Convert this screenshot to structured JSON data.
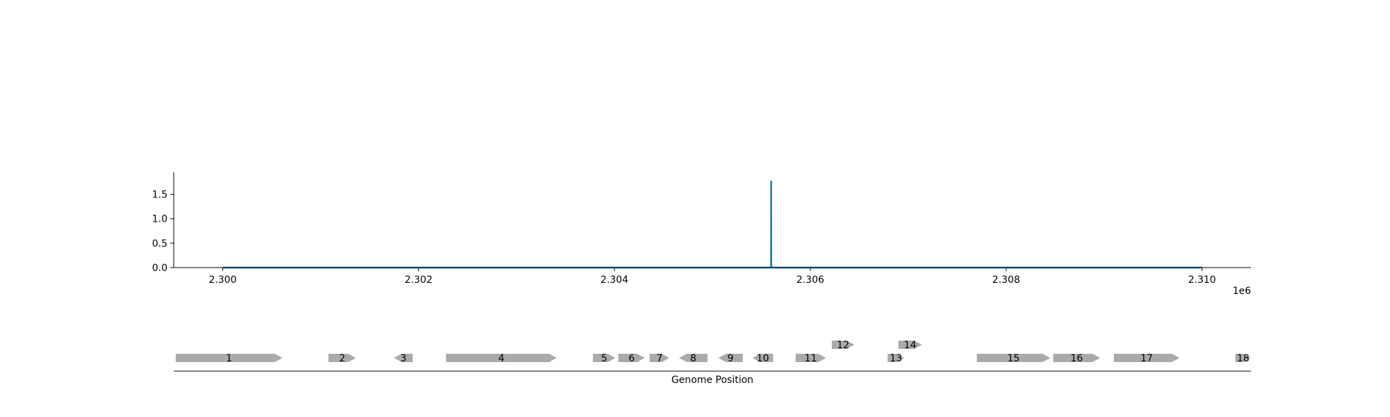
{
  "chart_data": [
    {
      "type": "line",
      "x_offset_label": "1e6",
      "xlim": [
        2299500,
        2310500
      ],
      "ylim": [
        0,
        1.95
      ],
      "xticks": [
        2300000,
        2302000,
        2304000,
        2306000,
        2308000,
        2310000
      ],
      "xtick_labels": [
        "2.300",
        "2.302",
        "2.304",
        "2.306",
        "2.308",
        "2.310"
      ],
      "yticks": [
        0.0,
        0.5,
        1.0,
        1.5
      ],
      "ytick_labels": [
        "0.0",
        "0.5",
        "1.0",
        "1.5"
      ],
      "series": [
        {
          "color": "#1f77b4",
          "x": [
            2300000,
            2305599,
            2305600,
            2305601,
            2310000
          ],
          "y": [
            0,
            0,
            1.78,
            0,
            0
          ]
        }
      ],
      "grid": false
    },
    {
      "type": "gene_track",
      "xlabel": "Genome Position",
      "xlim": [
        2299500,
        2310500
      ],
      "feature_color": "#aaaaaa",
      "features": [
        {
          "label": "1",
          "start": 2299520,
          "end": 2300610,
          "strand": 1,
          "row": 0
        },
        {
          "label": "2",
          "start": 2301080,
          "end": 2301360,
          "strand": 1,
          "row": 0
        },
        {
          "label": "3",
          "start": 2301750,
          "end": 2301940,
          "strand": -1,
          "row": 0
        },
        {
          "label": "4",
          "start": 2302280,
          "end": 2303410,
          "strand": 1,
          "row": 0
        },
        {
          "label": "5",
          "start": 2303780,
          "end": 2304010,
          "strand": 1,
          "row": 0
        },
        {
          "label": "6",
          "start": 2304040,
          "end": 2304310,
          "strand": 1,
          "row": 0
        },
        {
          "label": "7",
          "start": 2304360,
          "end": 2304560,
          "strand": 1,
          "row": 0
        },
        {
          "label": "8",
          "start": 2304660,
          "end": 2304950,
          "strand": -1,
          "row": 0
        },
        {
          "label": "9",
          "start": 2305060,
          "end": 2305310,
          "strand": -1,
          "row": 0
        },
        {
          "label": "10",
          "start": 2305410,
          "end": 2305620,
          "strand": -1,
          "row": 0
        },
        {
          "label": "11",
          "start": 2305850,
          "end": 2306160,
          "strand": 1,
          "row": 0
        },
        {
          "label": "12",
          "start": 2306220,
          "end": 2306450,
          "strand": 1,
          "row": 1
        },
        {
          "label": "13",
          "start": 2306790,
          "end": 2306960,
          "strand": 1,
          "row": 0
        },
        {
          "label": "14",
          "start": 2306900,
          "end": 2307140,
          "strand": 1,
          "row": 1
        },
        {
          "label": "15",
          "start": 2307700,
          "end": 2308450,
          "strand": 1,
          "row": 0
        },
        {
          "label": "16",
          "start": 2308480,
          "end": 2308960,
          "strand": 1,
          "row": 0
        },
        {
          "label": "17",
          "start": 2309100,
          "end": 2309770,
          "strand": 1,
          "row": 0
        },
        {
          "label": "18",
          "start": 2310340,
          "end": 2310500,
          "strand": 1,
          "row": 0
        }
      ]
    }
  ]
}
